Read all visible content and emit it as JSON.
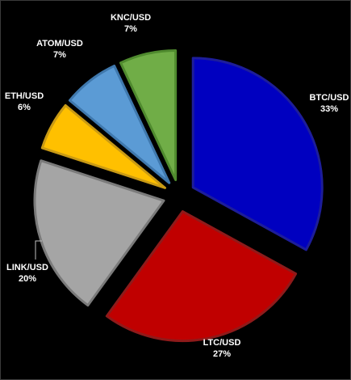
{
  "chart_data": {
    "type": "pie",
    "style": "exploded",
    "title": "",
    "start_angle_deg": 0,
    "direction": "clockwise",
    "background": "#000000",
    "slices": [
      {
        "label": "BTC/USD",
        "percent_label": "33%",
        "value": 33,
        "color": "#0000C0",
        "edge": "#1d1d9a"
      },
      {
        "label": "LTC/USD",
        "percent_label": "27%",
        "value": 27,
        "color": "#C00000",
        "edge": "#8f1a1a"
      },
      {
        "label": "LINK/USD",
        "percent_label": "20%",
        "value": 20,
        "color": "#A5A5A5",
        "edge": "#7a7a7a"
      },
      {
        "label": "ETH/USD",
        "percent_label": "6%",
        "value": 6,
        "color": "#FFC000",
        "edge": "#c99a14"
      },
      {
        "label": "ATOM/USD",
        "percent_label": "7%",
        "value": 7,
        "color": "#5B9BD5",
        "edge": "#3f78ad"
      },
      {
        "label": "KNC/USD",
        "percent_label": "7%",
        "value": 7,
        "color": "#70AD47",
        "edge": "#4f8a2e"
      }
    ]
  }
}
